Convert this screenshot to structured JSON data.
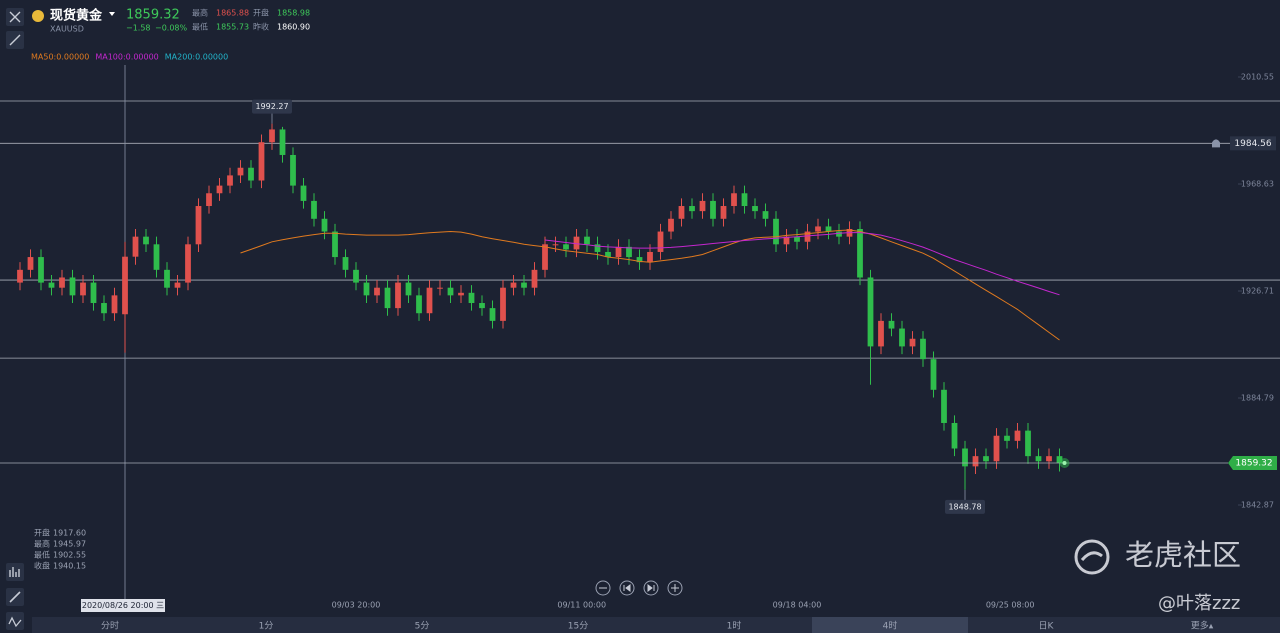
{
  "quote": {
    "name": "现货黄金",
    "symbol": "XAUUSD",
    "price": "1859.32",
    "change": "−1.58",
    "change_pct": "−0.08%",
    "high_label": "最高",
    "high": "1865.88",
    "open_label": "开盘",
    "open": "1858.98",
    "low_label": "最低",
    "low": "1855.73",
    "prev_label": "昨收",
    "prev": "1860.90"
  },
  "cursor_info": {
    "date": "2020/08/26 20:00 三",
    "rows": [
      [
        "开盘",
        "1917.60"
      ],
      [
        "最高",
        "1945.97"
      ],
      [
        "最低",
        "1902.55"
      ],
      [
        "收盘",
        "1940.15"
      ]
    ]
  },
  "tabs": [
    "分时",
    "1分",
    "5分",
    "15分",
    "1时",
    "4时",
    "日K",
    "更多▴"
  ],
  "selected_tab": 5,
  "watermark": {
    "brand": "老虎社区",
    "user": "@叶落zzz"
  },
  "chart_data": {
    "type": "candlestick",
    "up_color": "#e0514d",
    "down_color": "#2fbd4c",
    "ylim": [
      1799.77,
      2015.25
    ],
    "yticks": [
      2010.55,
      1968.63,
      1926.71,
      1884.79,
      1842.87
    ],
    "xlim": [
      0,
      99
    ],
    "xticks": [
      {
        "value": 32,
        "label": "09/03 20:00"
      },
      {
        "value": 53.5,
        "label": "09/11 00:00"
      },
      {
        "value": 74,
        "label": "09/18 04:00"
      },
      {
        "value": 94.3,
        "label": "09/25 08:00"
      }
    ],
    "cursor_index": 10,
    "alert_line": 1984.56,
    "lines": [
      2001.15,
      1931.0,
      1900.4
    ],
    "open": [
      1930,
      1935,
      1940,
      1930,
      1928,
      1932,
      1925,
      1930,
      1922,
      1918,
      1917.6,
      1940.15,
      1948,
      1945,
      1935,
      1928,
      1930,
      1945,
      1960,
      1965,
      1968,
      1972,
      1975,
      1970,
      1985,
      1990,
      1980,
      1968,
      1962,
      1955,
      1950,
      1940,
      1935,
      1930,
      1925,
      1928,
      1920,
      1930,
      1925,
      1918,
      1928,
      1928,
      1925,
      1926,
      1922,
      1920,
      1915,
      1928,
      1930,
      1928,
      1935,
      1945,
      1945,
      1943,
      1948,
      1945,
      1942,
      1940,
      1944,
      1940,
      1938,
      1942,
      1950,
      1955,
      1960,
      1958,
      1962,
      1955,
      1960,
      1965,
      1960,
      1958,
      1955,
      1945,
      1948,
      1946,
      1950,
      1952,
      1950,
      1948,
      1951,
      1932,
      1905,
      1915,
      1912,
      1905,
      1908,
      1900,
      1888,
      1875,
      1865,
      1858,
      1862,
      1860,
      1870,
      1868,
      1872,
      1862,
      1860,
      1862
    ],
    "high": [
      1938,
      1943,
      1943,
      1933,
      1935,
      1935,
      1933,
      1933,
      1925,
      1928,
      1945.97,
      1951,
      1951,
      1948,
      1938,
      1933,
      1948,
      1963,
      1968,
      1971,
      1975,
      1978,
      1978,
      1988,
      1992.27,
      1991,
      1983,
      1971,
      1965,
      1958,
      1953,
      1943,
      1938,
      1933,
      1931,
      1931,
      1933,
      1933,
      1928,
      1931,
      1931,
      1931,
      1929,
      1929,
      1925,
      1923,
      1931,
      1933,
      1933,
      1938,
      1948,
      1948,
      1948,
      1951,
      1951,
      1948,
      1945,
      1947,
      1947,
      1943,
      1945,
      1953,
      1958,
      1963,
      1963,
      1965,
      1965,
      1963,
      1968,
      1968,
      1963,
      1961,
      1958,
      1951,
      1951,
      1953,
      1955,
      1955,
      1953,
      1954,
      1954,
      1935,
      1918,
      1918,
      1915,
      1911,
      1911,
      1903,
      1891,
      1878,
      1868,
      1865,
      1865,
      1873,
      1873,
      1875,
      1875,
      1865,
      1865,
      1865
    ],
    "low": [
      1927,
      1932,
      1927,
      1925,
      1925,
      1922,
      1922,
      1919,
      1915,
      1915,
      1902.55,
      1937,
      1942,
      1932,
      1925,
      1925,
      1927,
      1942,
      1957,
      1962,
      1965,
      1969,
      1967,
      1967,
      1982,
      1977,
      1965,
      1959,
      1952,
      1947,
      1937,
      1932,
      1927,
      1922,
      1922,
      1917,
      1917,
      1922,
      1915,
      1915,
      1925,
      1922,
      1922,
      1919,
      1917,
      1912,
      1912,
      1925,
      1925,
      1925,
      1932,
      1942,
      1940,
      1940,
      1942,
      1939,
      1937,
      1937,
      1937,
      1935,
      1935,
      1939,
      1947,
      1952,
      1955,
      1955,
      1952,
      1952,
      1957,
      1957,
      1955,
      1952,
      1942,
      1942,
      1943,
      1943,
      1947,
      1947,
      1945,
      1945,
      1929,
      1890,
      1902,
      1909,
      1902,
      1902,
      1897,
      1885,
      1872,
      1862,
      1848.78,
      1855,
      1857,
      1857,
      1865,
      1865,
      1859,
      1857,
      1857,
      1856
    ],
    "close": [
      1935,
      1940,
      1930,
      1928,
      1932,
      1925,
      1930,
      1922,
      1918,
      1925,
      1940.15,
      1948,
      1945,
      1935,
      1928,
      1930,
      1945,
      1960,
      1965,
      1968,
      1972,
      1975,
      1970,
      1985,
      1990,
      1980,
      1968,
      1962,
      1955,
      1950,
      1940,
      1935,
      1930,
      1925,
      1928,
      1920,
      1930,
      1925,
      1918,
      1928,
      1928,
      1925,
      1926,
      1922,
      1920,
      1915,
      1928,
      1930,
      1928,
      1935,
      1945,
      1945,
      1943,
      1948,
      1945,
      1942,
      1940,
      1944,
      1940,
      1938,
      1942,
      1950,
      1955,
      1960,
      1958,
      1962,
      1955,
      1960,
      1965,
      1960,
      1958,
      1955,
      1945,
      1948,
      1946,
      1950,
      1952,
      1950,
      1948,
      1951,
      1932,
      1905,
      1915,
      1912,
      1905,
      1908,
      1900,
      1888,
      1875,
      1865,
      1858,
      1862,
      1860,
      1870,
      1868,
      1872,
      1862,
      1860,
      1862,
      1859.32
    ],
    "series": [
      {
        "name": "MA50:0.00000",
        "color": "#e07a1f",
        "values": [
          null,
          null,
          null,
          null,
          null,
          null,
          null,
          null,
          null,
          null,
          null,
          null,
          null,
          null,
          null,
          null,
          null,
          null,
          null,
          null,
          null,
          1941.6,
          1943,
          1944.5,
          1946,
          1946.8,
          1947.5,
          1948.2,
          1948.8,
          1949.3,
          1949.3,
          1949,
          1948.8,
          1948.6,
          1948.6,
          1948.6,
          1948.6,
          1948.8,
          1949.2,
          1949.5,
          1949.8,
          1950,
          1949.8,
          1949,
          1948,
          1947.2,
          1946.5,
          1945.8,
          1945,
          1944.5,
          1944,
          1943.2,
          1942.5,
          1942,
          1941.5,
          1941,
          1940,
          1939.5,
          1939,
          1938.3,
          1938,
          1938.5,
          1939,
          1939.5,
          1940.2,
          1941,
          1942.5,
          1944,
          1945.5,
          1946.8,
          1947.5,
          1947.8,
          1948,
          1948.5,
          1948.8,
          1949.2,
          1949.6,
          1950,
          1950.4,
          1950.6,
          1950,
          1949,
          1947.5,
          1946,
          1944.5,
          1943,
          1941.5,
          1939.5,
          1937,
          1934.5,
          1932,
          1929.5,
          1927,
          1924.5,
          1922,
          1919.5,
          1916.5,
          1913.5,
          1910.5,
          1907.5
        ]
      },
      {
        "name": "MA100:0.00000",
        "color": "#c427cf",
        "values": [
          null,
          null,
          null,
          null,
          null,
          null,
          null,
          null,
          null,
          null,
          null,
          null,
          null,
          null,
          null,
          null,
          null,
          null,
          null,
          null,
          null,
          null,
          null,
          null,
          null,
          null,
          null,
          null,
          null,
          null,
          null,
          null,
          null,
          null,
          null,
          null,
          null,
          null,
          null,
          null,
          null,
          null,
          null,
          null,
          null,
          null,
          null,
          null,
          null,
          null,
          1946.7,
          1946.2,
          1945.7,
          1945.2,
          1944.8,
          1944.3,
          1944,
          1943.8,
          1943.6,
          1943.5,
          1943.5,
          1943.6,
          1943.8,
          1944.1,
          1944.5,
          1944.9,
          1945.3,
          1945.7,
          1946.1,
          1946.5,
          1946.8,
          1947.1,
          1947.4,
          1947.7,
          1948,
          1948.3,
          1948.6,
          1948.9,
          1949.3,
          1949.6,
          1949.6,
          1949.2,
          1948.6,
          1947.6,
          1946.4,
          1945.2,
          1943.9,
          1942.3,
          1940.6,
          1939,
          1937.6,
          1936.2,
          1934.8,
          1933.3,
          1931.9,
          1930.5,
          1929.2,
          1927.9,
          1926.5,
          1925.2
        ]
      },
      {
        "name": "MA200:0.00000",
        "color": "#22b3c9",
        "values": [
          null,
          null,
          null,
          null,
          null,
          null,
          null,
          null,
          null,
          null,
          null,
          null,
          null,
          null,
          null,
          null,
          null,
          null,
          null,
          null,
          null,
          null,
          null,
          null,
          null,
          null,
          null,
          null,
          null,
          null,
          null,
          null,
          null,
          null,
          null,
          null,
          null,
          null,
          null,
          null,
          null,
          null,
          null,
          null,
          null,
          null,
          null,
          null,
          null,
          null,
          null,
          null,
          null,
          null,
          null,
          null,
          null,
          null,
          null,
          null,
          null,
          null,
          null,
          null,
          null,
          null,
          null,
          null,
          null,
          null,
          null,
          null,
          null,
          null,
          null,
          null,
          null,
          null,
          null,
          null,
          null,
          null,
          null,
          null,
          null,
          null,
          null,
          null,
          null,
          null,
          null,
          null,
          null,
          null,
          null,
          null,
          null,
          null,
          null,
          null
        ]
      }
    ]
  }
}
